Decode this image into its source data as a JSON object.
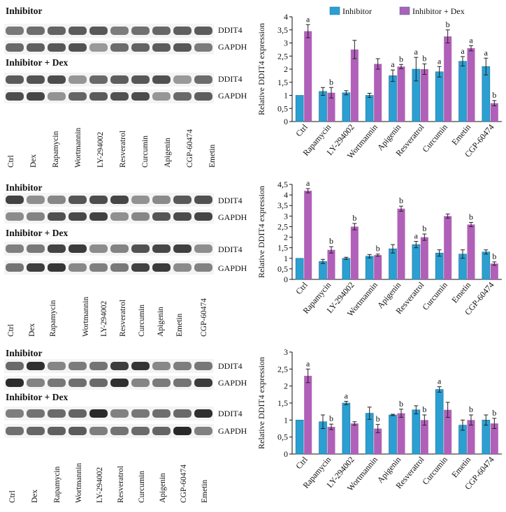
{
  "panels": [
    {
      "blot": {
        "top_title": "Inhibitor",
        "bottom_title": "Inhibitor + Dex",
        "band_labels": [
          "DDIT4",
          "GAPDH",
          "DDIT4",
          "GAPDH"
        ],
        "lanes": [
          "Ctrl",
          "Dex",
          "Rapamycin",
          "Wortmannin",
          "LY-294002",
          "Resveratrol",
          "Curcumin",
          "Apigenin",
          "CGP-60474",
          "Emetin"
        ]
      }
    },
    {
      "blot": {
        "top_title": "Inhibitor",
        "bottom_title": "Inhibitor + Dex",
        "band_labels": [
          "DDIT4",
          "GAPDH",
          "DDIT4",
          "GAPDH"
        ],
        "lanes": [
          "Ctrl",
          "Dex",
          "Rapamycin",
          "Wortmannin",
          "LY-294002",
          "Resveratrol",
          "Curcumin",
          "Apigenin",
          "Emetin",
          "CGP-60474"
        ]
      }
    },
    {
      "blot": {
        "top_title": "Inhibitor",
        "bottom_title": "Inhibitor + Dex",
        "band_labels": [
          "DDIT4",
          "GAPDH",
          "DDIT4",
          "GAPDH"
        ],
        "lanes": [
          "Ctrl",
          "Dex",
          "Rapamycin",
          "Wortmannin",
          "LY-294002",
          "Resveratrol",
          "Curcumin",
          "Apigenin",
          "CGP-60474",
          "Emetin"
        ]
      }
    }
  ],
  "colors": {
    "inhibitor": "#2b9fd2",
    "inhibitor_dex": "#b060b8"
  },
  "chart_data": [
    {
      "type": "bar",
      "ylabel": "Relative DDIT4 expression",
      "ylim": [
        0,
        4
      ],
      "ytick_step": 0.5,
      "grid": false,
      "legend": "top",
      "categories": [
        "Ctrl",
        "Rapamycin",
        "LY-294002",
        "Wortmannin",
        "Apigenin",
        "Resveratrol",
        "Curcumin",
        "Emetin",
        "CGP-60474"
      ],
      "series": [
        {
          "name": "Inhibitor",
          "values": [
            1.0,
            1.15,
            1.1,
            1.0,
            1.75,
            2.0,
            1.9,
            2.3,
            2.1
          ],
          "errors": [
            0,
            0.15,
            0.08,
            0.08,
            0.22,
            0.45,
            0.2,
            0.18,
            0.32
          ]
        },
        {
          "name": "Inhibitor + Dex",
          "values": [
            3.45,
            1.1,
            2.75,
            2.2,
            2.1,
            2.0,
            3.25,
            2.8,
            0.7
          ],
          "errors": [
            0.25,
            0.2,
            0.35,
            0.2,
            0.08,
            0.2,
            0.25,
            0.1,
            0.1
          ]
        }
      ],
      "annotations": [
        {
          "category": "Ctrl",
          "series": 1,
          "text": "a"
        },
        {
          "category": "Rapamycin",
          "series": 1,
          "text": "b"
        },
        {
          "category": "Apigenin",
          "series": 0,
          "text": "a"
        },
        {
          "category": "Apigenin",
          "series": 1,
          "text": "b"
        },
        {
          "category": "Resveratrol",
          "series": 0,
          "text": "a"
        },
        {
          "category": "Resveratrol",
          "series": 1,
          "text": "b"
        },
        {
          "category": "Curcumin",
          "series": 0,
          "text": "a"
        },
        {
          "category": "Curcumin",
          "series": 1,
          "text": "b"
        },
        {
          "category": "Emetin",
          "series": 0,
          "text": "a"
        },
        {
          "category": "Emetin",
          "series": 1,
          "text": "a"
        },
        {
          "category": "CGP-60474",
          "series": 0,
          "text": "a"
        },
        {
          "category": "CGP-60474",
          "series": 1,
          "text": "b"
        }
      ]
    },
    {
      "type": "bar",
      "ylabel": "Relative DDIT4 expression",
      "ylim": [
        0,
        4.5
      ],
      "ytick_step": 0.5,
      "grid": false,
      "legend": "none",
      "categories": [
        "Ctrl",
        "Rapamycin",
        "LY-294002",
        "Wortmannin",
        "Apigenin",
        "Resveratrol",
        "Curcumin",
        "Emetin",
        "CGP-60474"
      ],
      "series": [
        {
          "name": "Inhibitor",
          "values": [
            1.0,
            0.85,
            1.0,
            1.1,
            1.45,
            1.65,
            1.25,
            1.2,
            1.3
          ],
          "errors": [
            0,
            0.1,
            0.05,
            0.08,
            0.2,
            0.15,
            0.15,
            0.2,
            0.1
          ]
        },
        {
          "name": "Inhibitor + Dex",
          "values": [
            4.2,
            1.4,
            2.5,
            1.15,
            3.35,
            2.0,
            3.0,
            2.6,
            0.75
          ],
          "errors": [
            0.1,
            0.15,
            0.15,
            0.05,
            0.12,
            0.15,
            0.1,
            0.1,
            0.08
          ]
        }
      ],
      "annotations": [
        {
          "category": "Ctrl",
          "series": 1,
          "text": "a"
        },
        {
          "category": "Rapamycin",
          "series": 1,
          "text": "b"
        },
        {
          "category": "LY-294002",
          "series": 1,
          "text": "b"
        },
        {
          "category": "Wortmannin",
          "series": 1,
          "text": "b"
        },
        {
          "category": "Apigenin",
          "series": 1,
          "text": "b"
        },
        {
          "category": "Resveratrol",
          "series": 0,
          "text": "a"
        },
        {
          "category": "Resveratrol",
          "series": 1,
          "text": "b"
        },
        {
          "category": "Emetin",
          "series": 1,
          "text": "b"
        },
        {
          "category": "CGP-60474",
          "series": 1,
          "text": "b"
        }
      ]
    },
    {
      "type": "bar",
      "ylabel": "Relative DDIT4 expression",
      "ylim": [
        0,
        3
      ],
      "ytick_step": 0.5,
      "grid": false,
      "legend": "none",
      "categories": [
        "Ctrl",
        "Rapamycin",
        "LY-294002",
        "Wortmannin",
        "Apigenin",
        "Resveratrol",
        "Curcumin",
        "Emetin",
        "CGP-60474"
      ],
      "series": [
        {
          "name": "Inhibitor",
          "values": [
            1.0,
            0.95,
            1.5,
            1.2,
            1.15,
            1.3,
            1.9,
            0.85,
            1.0
          ],
          "errors": [
            0,
            0.2,
            0.05,
            0.18,
            0.02,
            0.12,
            0.08,
            0.15,
            0.15
          ]
        },
        {
          "name": "Inhibitor + Dex",
          "values": [
            2.3,
            0.8,
            0.9,
            0.75,
            1.2,
            1.0,
            1.3,
            1.0,
            0.9
          ],
          "errors": [
            0.2,
            0.08,
            0.05,
            0.12,
            0.12,
            0.15,
            0.22,
            0.15,
            0.15
          ]
        }
      ],
      "annotations": [
        {
          "category": "Ctrl",
          "series": 1,
          "text": "a"
        },
        {
          "category": "Rapamycin",
          "series": 1,
          "text": "b"
        },
        {
          "category": "LY-294002",
          "series": 0,
          "text": "a"
        },
        {
          "category": "Wortmannin",
          "series": 1,
          "text": "b"
        },
        {
          "category": "Apigenin",
          "series": 1,
          "text": "b"
        },
        {
          "category": "Resveratrol",
          "series": 1,
          "text": "b"
        },
        {
          "category": "Curcumin",
          "series": 0,
          "text": "a"
        },
        {
          "category": "Emetin",
          "series": 1,
          "text": "b"
        },
        {
          "category": "CGP-60474",
          "series": 1,
          "text": "b"
        }
      ]
    }
  ]
}
